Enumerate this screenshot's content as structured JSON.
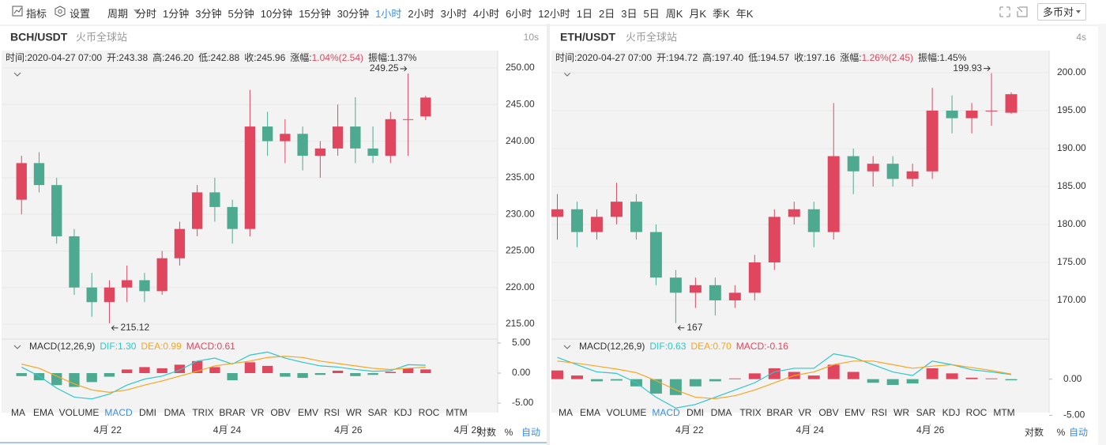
{
  "toolbar": {
    "indicator": "指标",
    "settings": "设置",
    "period": "周期",
    "periods": [
      "分时",
      "1分钟",
      "3分钟",
      "5分钟",
      "10分钟",
      "15分钟",
      "30分钟",
      "1小时",
      "2小时",
      "3小时",
      "4小时",
      "6小时",
      "12小时",
      "1日",
      "2日",
      "3日",
      "5日",
      "周K",
      "月K",
      "季K",
      "年K"
    ],
    "active_period": 7,
    "pair_button": "多币对"
  },
  "indicator_tabs": [
    "MA",
    "EMA",
    "VOLUME",
    "MACD",
    "DMI",
    "DMA",
    "TRIX",
    "BRAR",
    "VR",
    "OBV",
    "EMV",
    "RSI",
    "WR",
    "SAR",
    "KDJ",
    "ROC",
    "MTM"
  ],
  "active_indicator": 3,
  "scale_buttons": [
    "对数",
    "%",
    "自动"
  ],
  "panels": [
    {
      "title": "BCH/USDT",
      "exchange": "火币全球站",
      "timer": "10s",
      "info": {
        "time": "时间:2020-04-27 07:00",
        "open": "开:243.38",
        "high": "高:246.20",
        "low": "低:242.88",
        "close": "收:245.96",
        "change_label": "涨幅:",
        "change": "1.04%(2.54)",
        "amplitude": "振幅:1.37%"
      },
      "chart": {
        "type": "candlestick",
        "up_color": "#e0475f",
        "down_color": "#4daa90",
        "grid": true,
        "open": [
          232,
          237,
          234,
          227,
          220,
          218,
          220,
          221,
          219.5,
          224,
          228,
          233,
          231,
          228,
          242,
          240,
          241,
          238,
          239,
          242,
          239,
          238,
          243,
          243.38
        ],
        "high": [
          238,
          238.5,
          235,
          228,
          222,
          221,
          223,
          222,
          225,
          229,
          234,
          235,
          232,
          247,
          244,
          243,
          242,
          240,
          245,
          246,
          242,
          244,
          249.25,
          246.2
        ],
        "low": [
          230,
          233,
          226,
          219,
          216,
          215.12,
          218,
          218,
          219,
          223,
          227,
          229,
          226,
          227,
          238,
          237,
          236,
          235,
          238,
          237,
          237,
          237,
          238,
          242.88
        ],
        "close": [
          237,
          234,
          227,
          220,
          218,
          220,
          221,
          219.5,
          224,
          228,
          233,
          231,
          228,
          242,
          240,
          241,
          238,
          239,
          242,
          239,
          238,
          243,
          243,
          245.96
        ],
        "xlim": [
          -1,
          27.1
        ],
        "ylim": [
          213.06,
          252.16
        ],
        "yticks": [
          {
            "value": 215,
            "label": "215.00"
          },
          {
            "value": 220,
            "label": "220.00"
          },
          {
            "value": 225,
            "label": "225.00"
          },
          {
            "value": 230,
            "label": "230.00"
          },
          {
            "value": 235,
            "label": "235.00"
          },
          {
            "value": 240,
            "label": "240.00"
          },
          {
            "value": 245,
            "label": "245.00"
          },
          {
            "value": 250,
            "label": "250.00"
          }
        ],
        "xticks": [
          {
            "value": 4.9,
            "label": "4月 22"
          },
          {
            "value": 11.7,
            "label": "4月 24"
          },
          {
            "value": 18.6,
            "label": "4月 26"
          },
          {
            "value": 25.4,
            "label": "4月 28"
          }
        ],
        "max_label": 249.25,
        "min_label": 215.12
      },
      "macd": {
        "type": "bar",
        "label": "MACD(12,26,9)",
        "dif_label": "DIF:1.30",
        "dea_label": "DEA:0.99",
        "macd_label": "MACD:0.61",
        "dif_color": "#2ec7c9",
        "dea_color": "#f5a623",
        "histogram": [
          -0.5,
          -1.2,
          -2.0,
          -2.3,
          -1.5,
          -0.6,
          0.6,
          1.0,
          0.8,
          1.4,
          2.0,
          1.0,
          -1.2,
          1.8,
          1.2,
          -0.6,
          -0.8,
          -0.3,
          0.4,
          -0.5,
          -0.3,
          0.2,
          0.8,
          0.61
        ],
        "dif": [
          1.0,
          -0.5,
          -2.5,
          -4.0,
          -4.3,
          -3.5,
          -2.0,
          -1.0,
          -0.5,
          0.5,
          2.0,
          2.5,
          1.5,
          3.0,
          3.5,
          2.5,
          1.8,
          1.2,
          1.0,
          0.6,
          0.3,
          0.4,
          1.4,
          1.3
        ],
        "dea": [
          1.5,
          0.8,
          -0.5,
          -1.8,
          -2.8,
          -3.2,
          -2.8,
          -2.0,
          -1.3,
          -0.5,
          0.3,
          1.2,
          1.6,
          2.0,
          2.6,
          2.8,
          2.6,
          2.0,
          1.6,
          1.2,
          0.8,
          0.6,
          0.8,
          0.99
        ],
        "ylim": [
          -6.05,
          5.53
        ],
        "yticks": [
          {
            "value": 5,
            "label": "5.00"
          },
          {
            "value": 0,
            "label": "0.00"
          },
          {
            "value": -5,
            "label": "-5.00"
          }
        ]
      }
    },
    {
      "title": "ETH/USDT",
      "exchange": "火币全球站",
      "timer": "4s",
      "info": {
        "time": "时间:2020-04-27 07:00",
        "open": "开:194.72",
        "high": "高:197.40",
        "low": "低:194.57",
        "close": "收:197.16",
        "change_label": "涨幅:",
        "change": "1.26%(2.45)",
        "amplitude": "振幅:1.45%"
      },
      "chart": {
        "type": "candlestick",
        "up_color": "#e0475f",
        "down_color": "#4daa90",
        "grid": true,
        "open": [
          181,
          182,
          179,
          181,
          183,
          179,
          173,
          171,
          172,
          170,
          171,
          175,
          181,
          182,
          179,
          189,
          187,
          188,
          186,
          187,
          195,
          194,
          195,
          194.72
        ],
        "high": [
          184,
          183,
          182,
          185.5,
          184,
          180,
          174,
          173,
          173,
          172,
          176,
          182,
          183,
          183,
          196,
          190,
          189,
          189,
          188,
          198,
          197,
          196,
          199.93,
          197.4
        ],
        "low": [
          178,
          177,
          178,
          180,
          178,
          172,
          167,
          169,
          168,
          169,
          170,
          174,
          180,
          177,
          178,
          184,
          185,
          185,
          185,
          186,
          192,
          192,
          193,
          194.57
        ],
        "close": [
          182,
          179,
          181,
          183,
          179,
          173,
          171,
          172,
          170,
          171,
          175,
          181,
          182,
          179,
          189,
          187,
          188,
          186,
          187,
          195,
          194,
          195,
          195,
          197.16
        ],
        "xlim": [
          -0.3,
          24.8
        ],
        "ylim": [
          165,
          202.7
        ],
        "yticks": [
          {
            "value": 170,
            "label": "170.00"
          },
          {
            "value": 175,
            "label": "175.00"
          },
          {
            "value": 180,
            "label": "180.00"
          },
          {
            "value": 185,
            "label": "185.00"
          },
          {
            "value": 190,
            "label": "190.00"
          },
          {
            "value": 195,
            "label": "195.00"
          },
          {
            "value": 200,
            "label": "200.00"
          }
        ],
        "xticks": [
          {
            "value": 6.7,
            "label": "4月 22"
          },
          {
            "value": 12.8,
            "label": "4月 24"
          },
          {
            "value": 18.9,
            "label": "4月 26"
          }
        ],
        "max_label": 199.93,
        "min_label": 167
      },
      "macd": {
        "type": "bar",
        "label": "MACD(12,26,9)",
        "dif_label": "DIF:0.63",
        "dea_label": "DEA:0.70",
        "macd_label": "MACD:-0.16",
        "dif_color": "#2ec7c9",
        "dea_color": "#f5a623",
        "histogram": [
          1.2,
          0.5,
          -0.3,
          -0.2,
          -1.0,
          -2.0,
          -2.2,
          -1.0,
          -0.3,
          0.1,
          0.8,
          1.5,
          1.0,
          0.5,
          2.0,
          1.0,
          -0.5,
          -0.8,
          -0.6,
          1.5,
          0.8,
          0.2,
          0.1,
          -0.16
        ],
        "dif": [
          3.0,
          2.0,
          1.0,
          0.8,
          -0.5,
          -2.5,
          -4.0,
          -3.5,
          -2.5,
          -1.5,
          -0.5,
          1.0,
          1.5,
          1.5,
          3.5,
          3.0,
          2.0,
          1.0,
          0.5,
          2.5,
          2.0,
          1.3,
          1.0,
          0.63
        ],
        "dea": [
          2.5,
          2.2,
          1.8,
          1.4,
          0.9,
          -0.2,
          -1.5,
          -2.5,
          -2.7,
          -2.3,
          -1.5,
          -0.5,
          0.5,
          1.0,
          2.0,
          2.5,
          2.5,
          2.0,
          1.5,
          1.8,
          2.0,
          1.6,
          1.2,
          0.7
        ],
        "ylim": [
          -5.5,
          5.43
        ],
        "yticks": [
          {
            "value": 0,
            "label": "0.00"
          },
          {
            "value": -5,
            "label": "-5.00"
          }
        ]
      }
    }
  ]
}
